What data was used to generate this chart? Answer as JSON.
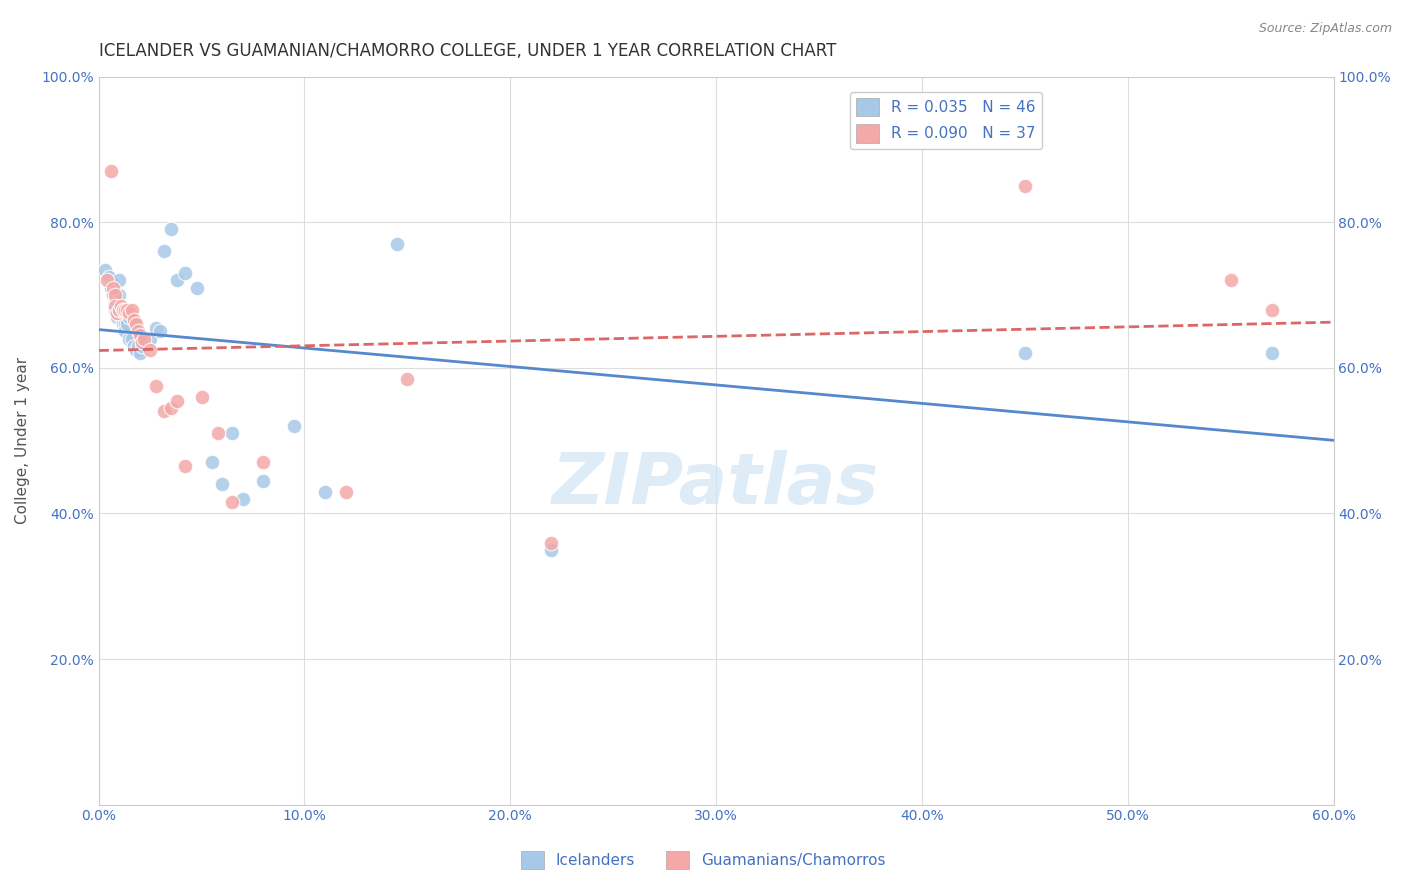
{
  "title": "ICELANDER VS GUAMANIAN/CHAMORRO COLLEGE, UNDER 1 YEAR CORRELATION CHART",
  "source": "Source: ZipAtlas.com",
  "ylabel": "College, Under 1 year",
  "watermark": "ZIPatlas",
  "xlim": [
    0.0,
    0.6
  ],
  "ylim": [
    0.0,
    1.0
  ],
  "xtick_labels": [
    "0.0%",
    "10.0%",
    "20.0%",
    "30.0%",
    "40.0%",
    "50.0%",
    "60.0%"
  ],
  "ytick_labels": [
    "",
    "20.0%",
    "40.0%",
    "60.0%",
    "80.0%",
    "100.0%"
  ],
  "ytick_positions": [
    0.0,
    0.2,
    0.4,
    0.6,
    0.8,
    1.0
  ],
  "xtick_positions": [
    0.0,
    0.1,
    0.2,
    0.3,
    0.4,
    0.5,
    0.6
  ],
  "legend_r_blue": "R = 0.035",
  "legend_n_blue": "N = 46",
  "legend_r_pink": "R = 0.090",
  "legend_n_pink": "N = 37",
  "blue_color": "#a8c8e8",
  "pink_color": "#f4a8a8",
  "blue_line_color": "#5588cc",
  "pink_line_color": "#dd6666",
  "grid_color": "#dddddd",
  "title_color": "#333333",
  "axis_color": "#4472c4",
  "icelanders_x": [
    0.003,
    0.005,
    0.006,
    0.007,
    0.007,
    0.008,
    0.008,
    0.009,
    0.009,
    0.01,
    0.01,
    0.01,
    0.011,
    0.012,
    0.012,
    0.013,
    0.013,
    0.014,
    0.015,
    0.015,
    0.016,
    0.017,
    0.018,
    0.019,
    0.02,
    0.021,
    0.022,
    0.025,
    0.028,
    0.03,
    0.032,
    0.035,
    0.038,
    0.042,
    0.048,
    0.055,
    0.06,
    0.065,
    0.07,
    0.08,
    0.095,
    0.11,
    0.145,
    0.22,
    0.45,
    0.57
  ],
  "icelanders_y": [
    0.735,
    0.725,
    0.71,
    0.715,
    0.7,
    0.695,
    0.68,
    0.69,
    0.67,
    0.72,
    0.7,
    0.68,
    0.67,
    0.66,
    0.68,
    0.66,
    0.65,
    0.66,
    0.64,
    0.67,
    0.64,
    0.63,
    0.625,
    0.63,
    0.62,
    0.63,
    0.64,
    0.64,
    0.655,
    0.65,
    0.76,
    0.79,
    0.72,
    0.73,
    0.71,
    0.47,
    0.44,
    0.51,
    0.42,
    0.445,
    0.52,
    0.43,
    0.77,
    0.35,
    0.62,
    0.62
  ],
  "guamanians_x": [
    0.004,
    0.006,
    0.007,
    0.008,
    0.008,
    0.009,
    0.01,
    0.01,
    0.011,
    0.012,
    0.012,
    0.013,
    0.014,
    0.015,
    0.016,
    0.017,
    0.018,
    0.019,
    0.02,
    0.021,
    0.022,
    0.025,
    0.028,
    0.032,
    0.035,
    0.038,
    0.042,
    0.05,
    0.058,
    0.065,
    0.08,
    0.12,
    0.15,
    0.22,
    0.45,
    0.55,
    0.57
  ],
  "guamanians_y": [
    0.72,
    0.87,
    0.71,
    0.7,
    0.685,
    0.675,
    0.68,
    0.68,
    0.685,
    0.68,
    0.68,
    0.68,
    0.68,
    0.675,
    0.68,
    0.665,
    0.66,
    0.65,
    0.645,
    0.635,
    0.64,
    0.625,
    0.575,
    0.54,
    0.545,
    0.555,
    0.465,
    0.56,
    0.51,
    0.415,
    0.47,
    0.43,
    0.585,
    0.36,
    0.85,
    0.72,
    0.68
  ]
}
